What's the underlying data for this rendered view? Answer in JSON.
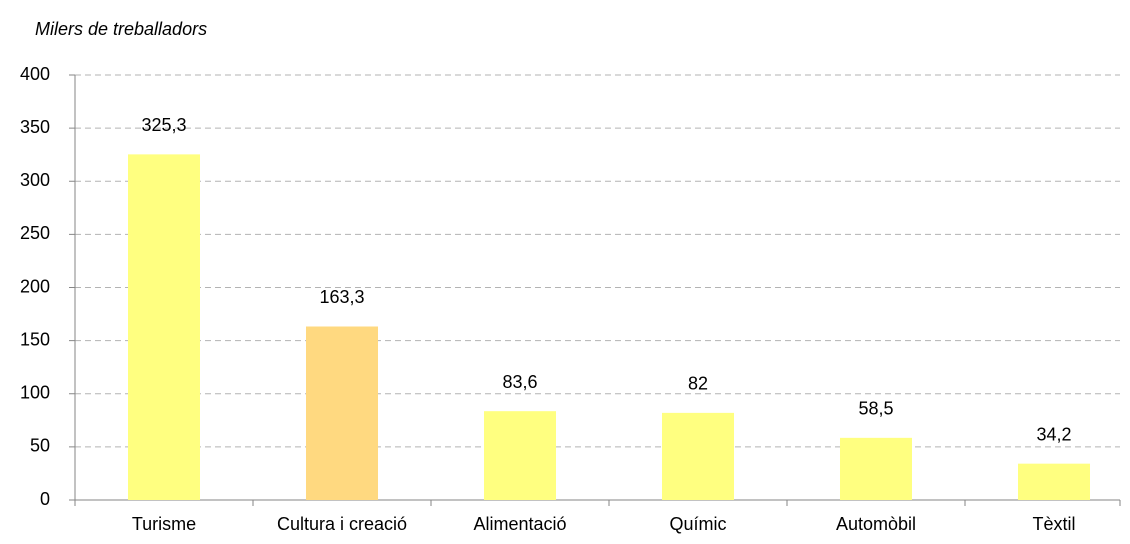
{
  "chart_data": {
    "type": "bar",
    "title": "Milers de treballadors",
    "categories": [
      "Turisme",
      "Cultura i creació",
      "Alimentació",
      "Químic",
      "Automòbil",
      "Tèxtil"
    ],
    "values": [
      325.3,
      163.3,
      83.6,
      82,
      58.5,
      34.2
    ],
    "value_labels": [
      "325,3",
      "163,3",
      "83,6",
      "82",
      "58,5",
      "34,2"
    ],
    "colors": [
      "#ffff80",
      "#ffd980",
      "#ffff80",
      "#ffff80",
      "#ffff80",
      "#ffff80"
    ],
    "ylim": [
      0,
      400
    ],
    "yticks": [
      0,
      50,
      100,
      150,
      200,
      250,
      300,
      350,
      400
    ],
    "grid": true
  }
}
